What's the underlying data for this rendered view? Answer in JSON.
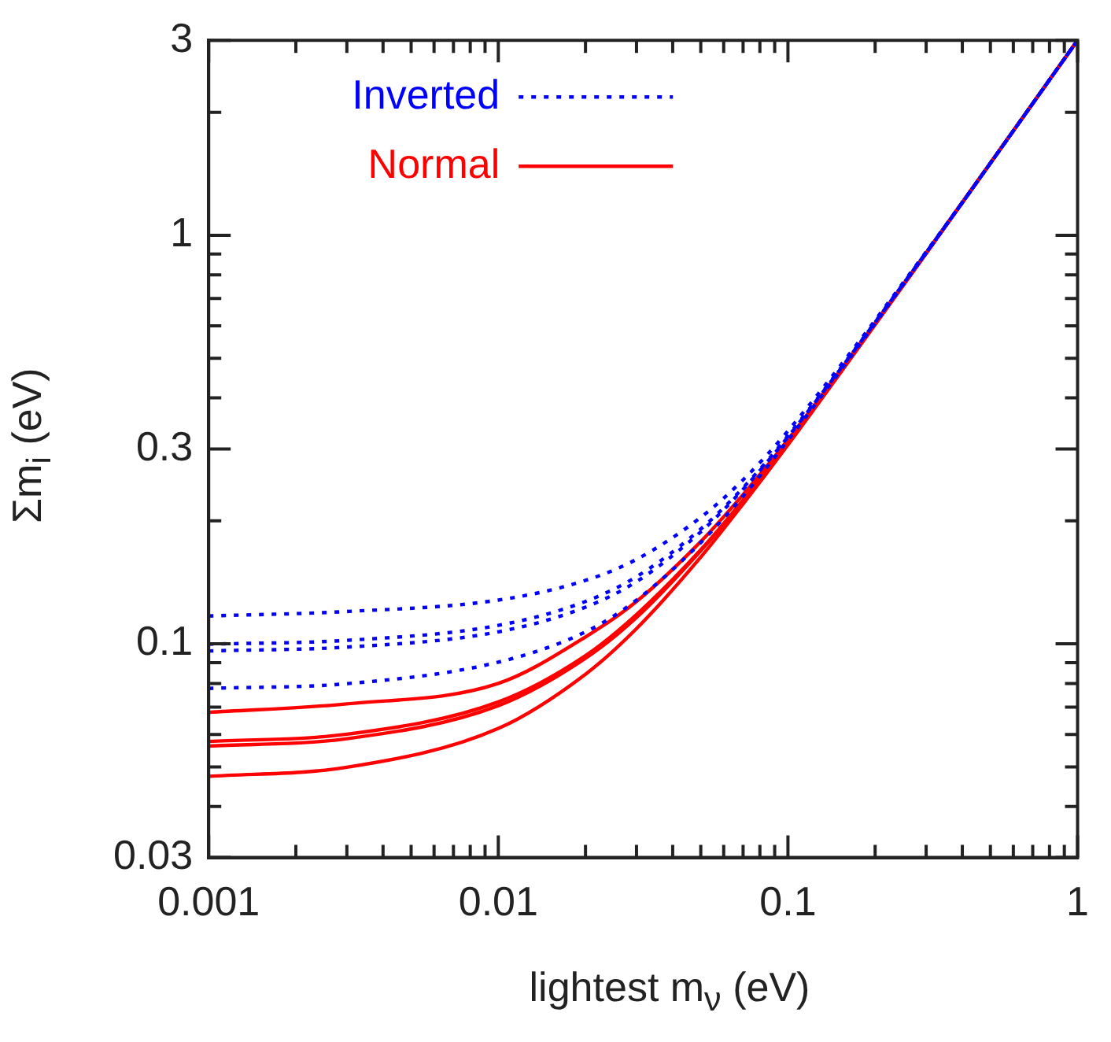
{
  "chart_data": {
    "type": "line",
    "xlabel": "lightest m$_{ν}$ (eV)",
    "ylabel": "Σm$_{i}$ (eV)",
    "log": "xy",
    "legend": "top left",
    "grid": false,
    "marker": "none",
    "x": [
      0.001,
      0.003,
      0.01,
      0.02,
      0.03,
      0.05,
      0.07,
      0.1,
      0.3,
      1
    ],
    "xlim": [
      0.001,
      1
    ],
    "ylim": [
      0.03,
      3
    ],
    "xticks": [
      0.001,
      {
        "value": 0.002,
        "label": null
      },
      {
        "value": 0.003,
        "label": null
      },
      {
        "value": 0.004,
        "label": null
      },
      {
        "value": 0.005,
        "label": null
      },
      {
        "value": 0.006,
        "label": null
      },
      {
        "value": 0.007,
        "label": null
      },
      {
        "value": 0.008,
        "label": null
      },
      {
        "value": 0.009,
        "label": null
      },
      0.01,
      {
        "value": 0.02,
        "label": null
      },
      {
        "value": 0.03,
        "label": null
      },
      {
        "value": 0.04,
        "label": null
      },
      {
        "value": 0.05,
        "label": null
      },
      {
        "value": 0.06,
        "label": null
      },
      {
        "value": 0.07,
        "label": null
      },
      {
        "value": 0.08,
        "label": null
      },
      {
        "value": 0.09,
        "label": null
      },
      0.1,
      {
        "value": 0.2,
        "label": null
      },
      {
        "value": 0.3,
        "label": null
      },
      {
        "value": 0.4,
        "label": null
      },
      {
        "value": 0.5,
        "label": null
      },
      {
        "value": 0.6,
        "label": null
      },
      {
        "value": 0.7,
        "label": null
      },
      {
        "value": 0.8,
        "label": null
      },
      {
        "value": 0.9,
        "label": null
      },
      1
    ],
    "yticks": [
      0.03,
      {
        "value": 0.04,
        "label": null
      },
      {
        "value": 0.05,
        "label": null
      },
      {
        "value": 0.06,
        "label": null
      },
      {
        "value": 0.07,
        "label": null
      },
      {
        "value": 0.08,
        "label": null
      },
      {
        "value": 0.09,
        "label": null
      },
      0.1,
      {
        "value": 0.2,
        "label": null
      },
      0.3,
      {
        "value": 0.4,
        "label": null
      },
      {
        "value": 0.5,
        "label": null
      },
      {
        "value": 0.6,
        "label": null
      },
      {
        "value": 0.7,
        "label": null
      },
      {
        "value": 0.8,
        "label": null
      },
      {
        "value": 0.9,
        "label": null
      },
      1,
      {
        "value": 2,
        "label": null
      },
      3
    ],
    "series": [
      {
        "name": "Inverted",
        "color": "#0000ff",
        "line_style": "dotted",
        "values": [
          0.117,
          0.12,
          0.128,
          0.143,
          0.161,
          0.204,
          0.252,
          0.332,
          0.911,
          3
        ]
      },
      {
        "color": "#0000ff",
        "line_style": "dotted",
        "values": [
          0.0998,
          0.102,
          0.111,
          0.127,
          0.146,
          0.191,
          0.241,
          0.323,
          0.908,
          3
        ]
      },
      {
        "color": "#0000ff",
        "line_style": "dotted",
        "values": [
          0.0961,
          0.0982,
          0.107,
          0.123,
          0.142,
          0.188,
          0.239,
          0.321,
          0.907,
          3
        ]
      },
      {
        "color": "#0000ff",
        "line_style": "dotted",
        "values": [
          0.0778,
          0.0799,
          0.0902,
          0.107,
          0.128,
          0.177,
          0.23,
          0.315,
          0.905,
          3
        ]
      },
      {
        "name": "Normal",
        "color": "#ff0000",
        "line_style": "solid",
        "values": [
          0.068,
          0.0713,
          0.08,
          0.104,
          0.127,
          0.178,
          0.232,
          0.316,
          0.906,
          3
        ]
      },
      {
        "color": "#ff0000",
        "line_style": "solid",
        "values": [
          0.0577,
          0.0601,
          0.0721,
          0.0936,
          0.118,
          0.17,
          0.225,
          0.311,
          0.904,
          3
        ]
      },
      {
        "color": "#ff0000",
        "line_style": "solid",
        "values": [
          0.0562,
          0.0586,
          0.0706,
          0.0922,
          0.116,
          0.169,
          0.224,
          0.311,
          0.904,
          3
        ]
      },
      {
        "color": "#ff0000",
        "line_style": "solid",
        "values": [
          0.0474,
          0.0499,
          0.0621,
          0.0843,
          0.109,
          0.163,
          0.22,
          0.307,
          0.902,
          3
        ]
      }
    ]
  }
}
